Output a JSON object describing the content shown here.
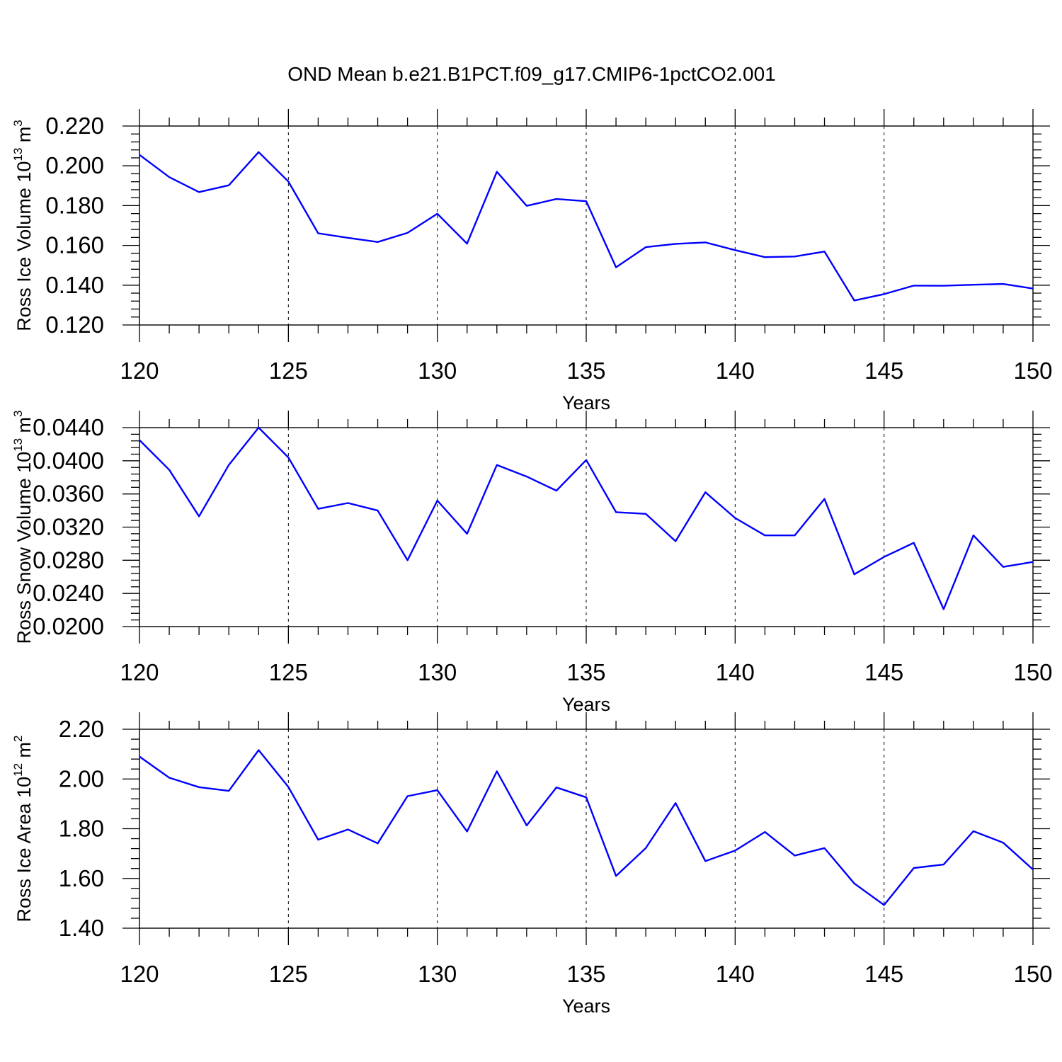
{
  "title": "OND Mean b.e21.B1PCT.f09_g17.CMIP6-1pctCO2.001",
  "line_color": "#0000ff",
  "chart_data": [
    {
      "type": "line",
      "name": "ice-volume",
      "ylabel": {
        "text": "Ross Ice Volume 10",
        "exp": "13",
        "unit": " m",
        "unit_exp": "3"
      },
      "xlabel": "Years",
      "xlim": [
        120,
        150
      ],
      "ylim": [
        0.12,
        0.22
      ],
      "x_ticks": [
        "120",
        "125",
        "130",
        "135",
        "140",
        "145",
        "150"
      ],
      "y_ticks": [
        "0.120",
        "0.140",
        "0.160",
        "0.180",
        "0.200",
        "0.220"
      ],
      "grid": "dashed vertical at major x ticks",
      "x": [
        120,
        121,
        122,
        123,
        124,
        125,
        126,
        127,
        128,
        129,
        130,
        131,
        132,
        133,
        134,
        135,
        136,
        137,
        138,
        139,
        140,
        141,
        142,
        143,
        144,
        145,
        146,
        147,
        148,
        149,
        150
      ],
      "values": [
        0.2055,
        0.1943,
        0.1868,
        0.1902,
        0.2069,
        0.1921,
        0.1661,
        0.1638,
        0.1617,
        0.1663,
        0.1759,
        0.1609,
        0.197,
        0.1799,
        0.1833,
        0.1822,
        0.149,
        0.1591,
        0.1608,
        0.1615,
        0.1576,
        0.1541,
        0.1544,
        0.1569,
        0.1323,
        0.1355,
        0.1398,
        0.1397,
        0.1402,
        0.1406,
        0.1383
      ]
    },
    {
      "type": "line",
      "name": "snow-volume",
      "ylabel": {
        "text": "Ross Snow Volume 10",
        "exp": "13",
        "unit": " m",
        "unit_exp": "3"
      },
      "xlabel": "Years",
      "xlim": [
        120,
        150
      ],
      "ylim": [
        0.02,
        0.044
      ],
      "x_ticks": [
        "120",
        "125",
        "130",
        "135",
        "140",
        "145",
        "150"
      ],
      "y_ticks": [
        "0.0200",
        "0.0240",
        "0.0280",
        "0.0320",
        "0.0360",
        "0.0400",
        "0.0440"
      ],
      "grid": "dashed vertical at major x ticks",
      "x": [
        120,
        121,
        122,
        123,
        124,
        125,
        126,
        127,
        128,
        129,
        130,
        131,
        132,
        133,
        134,
        135,
        136,
        137,
        138,
        139,
        140,
        141,
        142,
        143,
        144,
        145,
        146,
        147,
        148,
        149,
        150
      ],
      "values": [
        0.0425,
        0.0389,
        0.0333,
        0.0395,
        0.044,
        0.0404,
        0.0342,
        0.0349,
        0.034,
        0.028,
        0.0352,
        0.0312,
        0.0395,
        0.0381,
        0.0364,
        0.0401,
        0.0338,
        0.0336,
        0.0303,
        0.0362,
        0.0331,
        0.031,
        0.031,
        0.0354,
        0.0263,
        0.0284,
        0.0301,
        0.0221,
        0.031,
        0.0272,
        0.0278
      ]
    },
    {
      "type": "line",
      "name": "ice-area",
      "ylabel": {
        "text": "Ross Ice Area 10",
        "exp": "12",
        "unit": " m",
        "unit_exp": "2"
      },
      "xlabel": "Years",
      "xlim": [
        120,
        150
      ],
      "ylim": [
        1.4,
        2.2
      ],
      "x_ticks": [
        "120",
        "125",
        "130",
        "135",
        "140",
        "145",
        "150"
      ],
      "y_ticks": [
        "1.40",
        "1.60",
        "1.80",
        "2.00",
        "2.20"
      ],
      "grid": "dashed vertical at major x ticks",
      "x": [
        120,
        121,
        122,
        123,
        124,
        125,
        126,
        127,
        128,
        129,
        130,
        131,
        132,
        133,
        134,
        135,
        136,
        137,
        138,
        139,
        140,
        141,
        142,
        143,
        144,
        145,
        146,
        147,
        148,
        149,
        150
      ],
      "values": [
        2.09,
        2.005,
        1.967,
        1.952,
        2.116,
        1.968,
        1.756,
        1.797,
        1.741,
        1.931,
        1.955,
        1.789,
        2.031,
        1.813,
        1.966,
        1.926,
        1.61,
        1.722,
        1.903,
        1.67,
        1.712,
        1.787,
        1.692,
        1.722,
        1.58,
        1.493,
        1.642,
        1.656,
        1.79,
        1.744,
        1.636
      ]
    }
  ]
}
